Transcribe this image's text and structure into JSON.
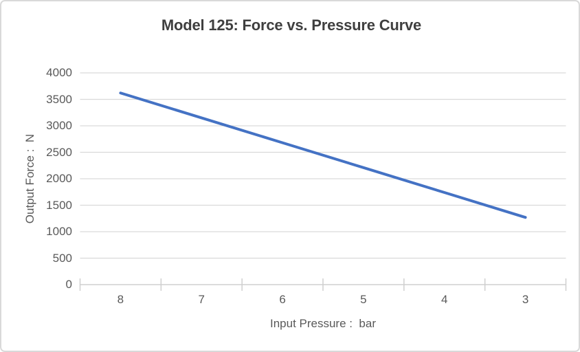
{
  "chart_data": {
    "type": "line",
    "title": "Model 125: Force vs. Pressure Curve",
    "categories": [
      "8",
      "7",
      "6",
      "5",
      "4",
      "3"
    ],
    "values": [
      3620,
      3150,
      2680,
      2210,
      1740,
      1270
    ],
    "xlabel": "Input Pressure :  bar",
    "ylabel": "Output Force :  N",
    "ylim": [
      0,
      4000
    ],
    "yticks": [
      0,
      500,
      1000,
      1500,
      2000,
      2500,
      3000,
      3500,
      4000
    ],
    "grid": true,
    "legend": false,
    "line_color": "#4472C4",
    "gridline_color": "#D9D9D9",
    "axis_color": "#CFCFCF",
    "tick_label_color": "#595959",
    "title_color": "#3F3F3F",
    "border_color": "#D9D9D9"
  }
}
